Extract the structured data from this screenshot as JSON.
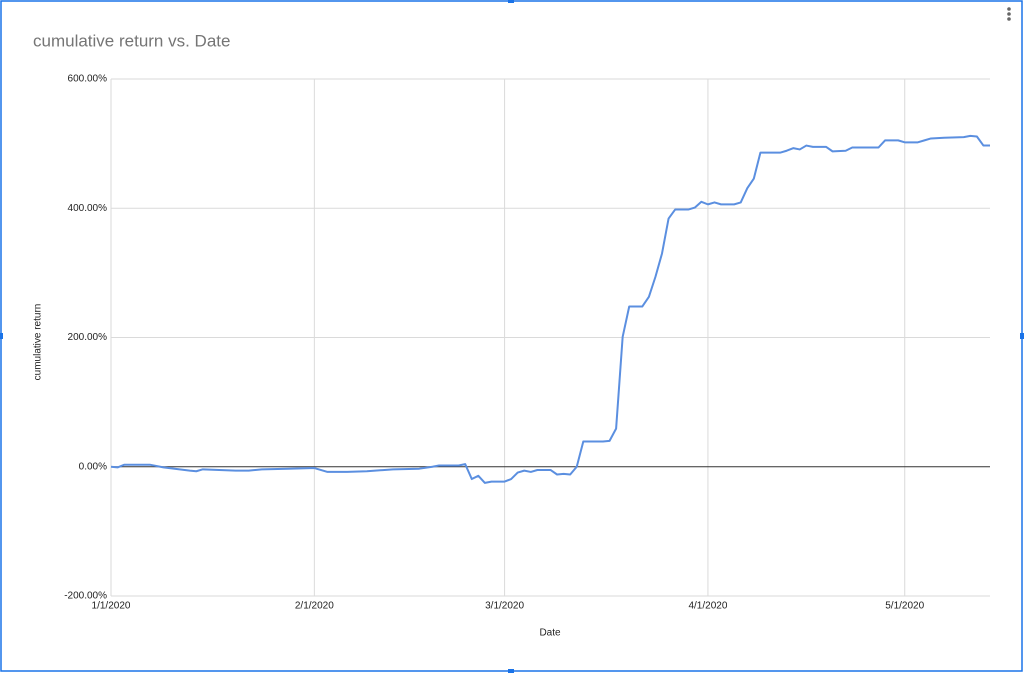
{
  "chart_data": {
    "type": "line",
    "title": "cumulative return vs. Date",
    "x_label": "Date",
    "y_label": "cumulative return",
    "xlim": [
      "1/1/2020",
      "5/14/2020"
    ],
    "xticks": [
      "1/1/2020",
      "2/1/2020",
      "3/1/2020",
      "4/1/2020",
      "5/1/2020"
    ],
    "ylim": [
      -200,
      600
    ],
    "yticks": [
      {
        "value": -200,
        "label": "-200.00%"
      },
      {
        "value": 0,
        "label": "0.00%"
      },
      {
        "value": 200,
        "label": "200.00%"
      },
      {
        "value": 400,
        "label": "400.00%"
      },
      {
        "value": 600,
        "label": "600.00%"
      }
    ],
    "grid": true,
    "x": [
      "1/1/2020",
      "1/2/2020",
      "1/3/2020",
      "1/7/2020",
      "1/9/2020",
      "1/13/2020",
      "1/14/2020",
      "1/15/2020",
      "1/20/2020",
      "1/22/2020",
      "1/24/2020",
      "1/28/2020",
      "2/1/2020",
      "2/3/2020",
      "2/6/2020",
      "2/9/2020",
      "2/13/2020",
      "2/17/2020",
      "2/19/2020",
      "2/20/2020",
      "2/23/2020",
      "2/24/2020",
      "2/25/2020",
      "2/26/2020",
      "2/27/2020",
      "2/28/2020",
      "3/1/2020",
      "3/2/2020",
      "3/3/2020",
      "3/4/2020",
      "3/5/2020",
      "3/6/2020",
      "3/8/2020",
      "3/9/2020",
      "3/10/2020",
      "3/11/2020",
      "3/12/2020",
      "3/13/2020",
      "3/16/2020",
      "3/17/2020",
      "3/18/2020",
      "3/19/2020",
      "3/20/2020",
      "3/22/2020",
      "3/23/2020",
      "3/24/2020",
      "3/25/2020",
      "3/26/2020",
      "3/27/2020",
      "3/29/2020",
      "3/30/2020",
      "3/31/2020",
      "4/1/2020",
      "4/2/2020",
      "4/3/2020",
      "4/5/2020",
      "4/6/2020",
      "4/7/2020",
      "4/8/2020",
      "4/9/2020",
      "4/12/2020",
      "4/13/2020",
      "4/14/2020",
      "4/15/2020",
      "4/16/2020",
      "4/17/2020",
      "4/19/2020",
      "4/20/2020",
      "4/22/2020",
      "4/23/2020",
      "4/26/2020",
      "4/27/2020",
      "4/28/2020",
      "4/30/2020",
      "5/1/2020",
      "5/3/2020",
      "5/4/2020",
      "5/5/2020",
      "5/7/2020",
      "5/10/2020",
      "5/11/2020",
      "5/12/2020",
      "5/13/2020",
      "5/14/2020"
    ],
    "series": [
      {
        "name": "cumulative return",
        "color": "#5b8fe0",
        "values": [
          0,
          -1,
          3,
          3,
          -1,
          -6,
          -7,
          -4,
          -6,
          -6,
          -4,
          -3,
          -2,
          -8,
          -8,
          -7,
          -4,
          -3,
          0,
          2,
          2,
          4,
          -19,
          -14,
          -25,
          -23,
          -23,
          -19,
          -9,
          -6,
          -8,
          -5,
          -5,
          -12,
          -11,
          -12,
          0,
          39,
          39,
          40,
          59,
          201,
          248,
          248,
          263,
          294,
          330,
          384,
          398,
          398,
          401,
          410,
          406,
          409,
          406,
          406,
          409,
          431,
          446,
          486,
          486,
          489,
          493,
          491,
          497,
          495,
          495,
          488,
          489,
          494,
          494,
          494,
          505,
          505,
          502,
          502,
          505,
          508,
          509,
          510,
          512,
          511,
          497,
          497
        ]
      }
    ]
  }
}
